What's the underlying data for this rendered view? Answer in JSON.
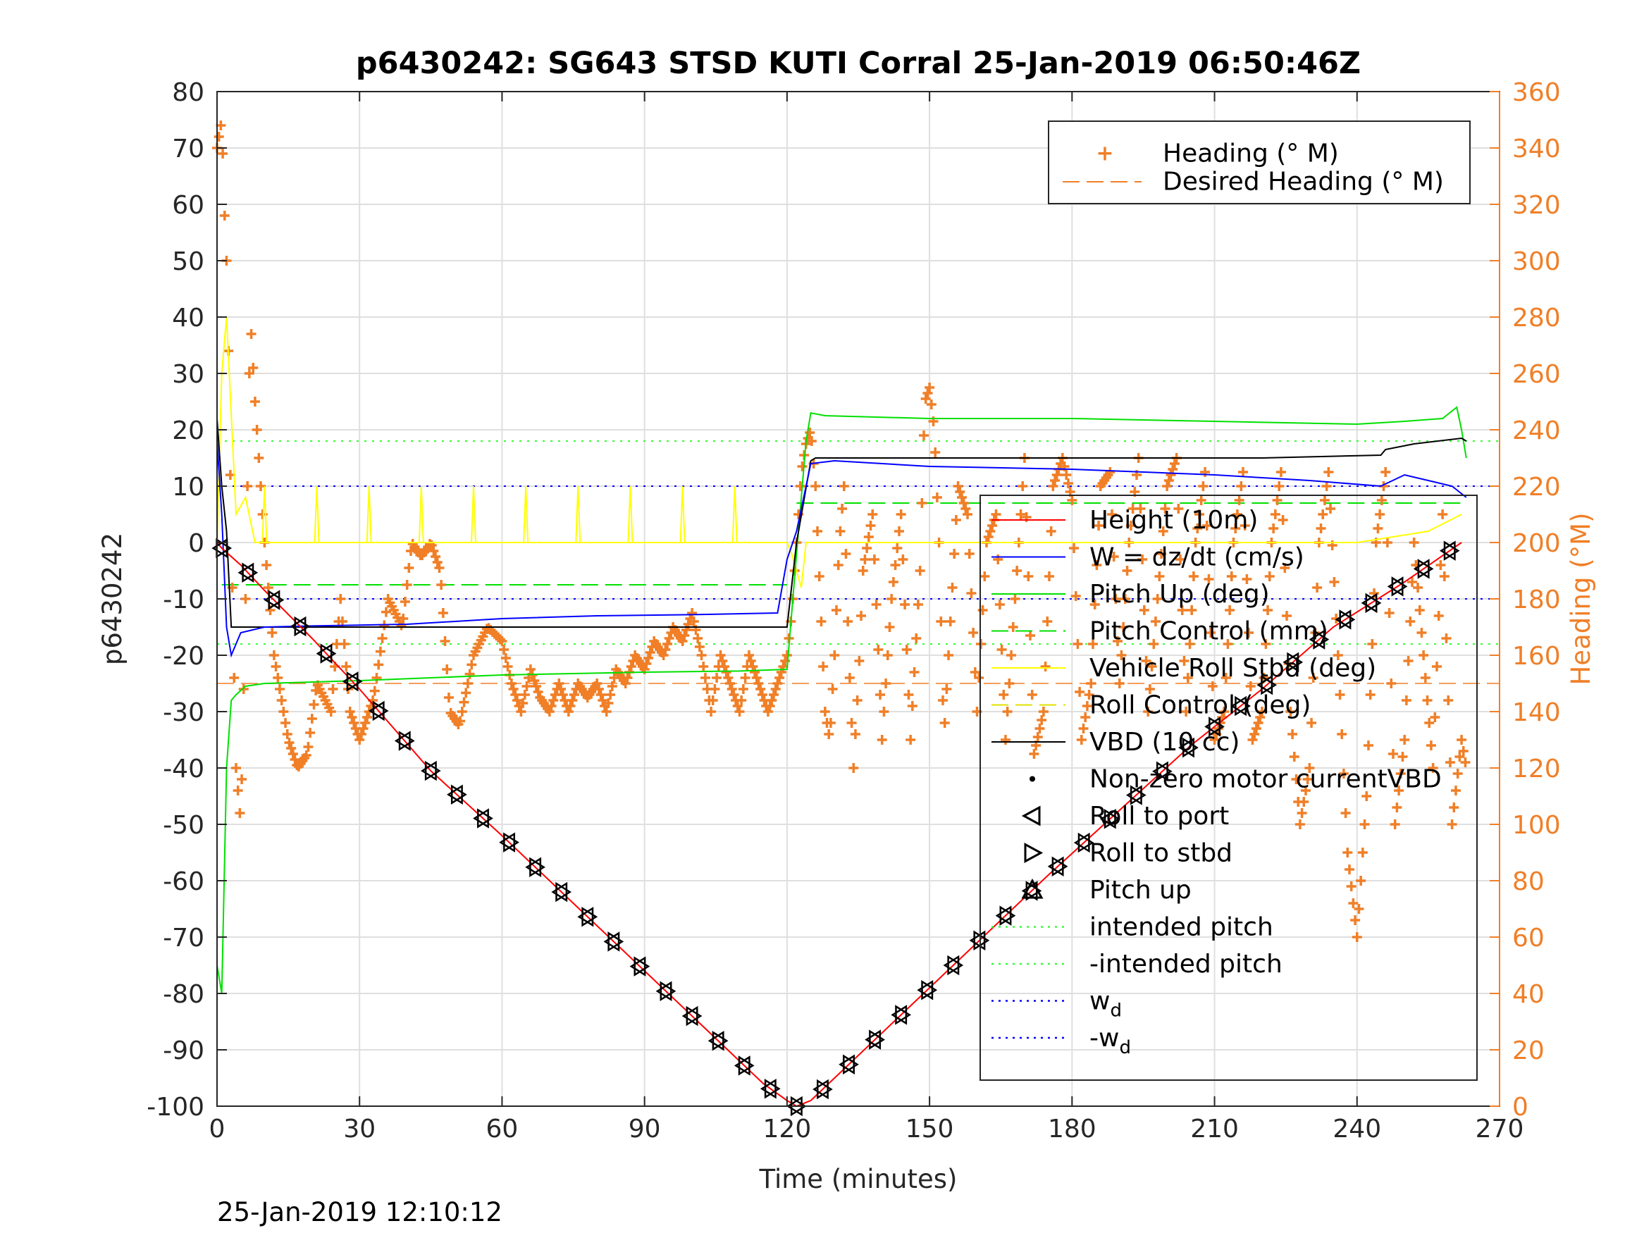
{
  "chart_data": {
    "type": "line",
    "title": "p6430242: SG643 STSD KUTI Corral 25-Jan-2019 06:50:46Z",
    "xlabel": "Time (minutes)",
    "ylabel": "p6430242",
    "ylabel_right": "Heading (°M)",
    "xlim": [
      0,
      270
    ],
    "ylim": [
      -100,
      80
    ],
    "ylim_right": [
      0,
      360
    ],
    "xticks": [
      "0",
      "30",
      "60",
      "90",
      "120",
      "150",
      "180",
      "210",
      "240",
      "270"
    ],
    "yticks": [
      "80",
      "70",
      "60",
      "50",
      "40",
      "30",
      "20",
      "10",
      "0",
      "-10",
      "-20",
      "-30",
      "-40",
      "-50",
      "-60",
      "-70",
      "-80",
      "-90",
      "-100"
    ],
    "yticks_right": [
      "360",
      "340",
      "320",
      "300",
      "280",
      "260",
      "240",
      "220",
      "200",
      "180",
      "160",
      "140",
      "120",
      "100",
      "80",
      "60",
      "40",
      "20",
      "0"
    ],
    "grid": true,
    "footer": "25-Jan-2019 12:10:12",
    "colors": {
      "height": "#ff0000",
      "w": "#0000ff",
      "pitch_up": "#00e000",
      "pitch_control": "#00e000",
      "roll_stbd": "#ffff00",
      "roll_control": "#e0e000",
      "vbd": "#000000",
      "heading": "#f07f27",
      "desired_heading": "#f07f27",
      "intended_pitch": "#33ff33",
      "wd": "#0000ff"
    },
    "legend_top": {
      "placement": "top-right",
      "entries": [
        "Heading (° M)",
        "Desired Heading (° M)"
      ]
    },
    "legend_main": {
      "placement": "right",
      "entries": [
        {
          "label": "Height (10m)",
          "style": "line",
          "color": "#ff0000"
        },
        {
          "label": "W = dz/dt (cm/s)",
          "style": "line",
          "color": "#0000ff"
        },
        {
          "label": "Pitch Up (deg)",
          "style": "line",
          "color": "#00e000"
        },
        {
          "label": "Pitch Control (mm)",
          "style": "dash",
          "color": "#00e000"
        },
        {
          "label": "Vehicle Roll Stbd (deg)",
          "style": "line",
          "color": "#ffff00"
        },
        {
          "label": "Roll Control (deg)",
          "style": "dash",
          "color": "#e0e000"
        },
        {
          "label": "VBD (10 cc)",
          "style": "line",
          "color": "#000000"
        },
        {
          "label": "Non-zero motor currentVBD",
          "style": "dot",
          "color": "#000000"
        },
        {
          "label": "Roll to port",
          "style": "tri-left",
          "color": "#000000"
        },
        {
          "label": "Roll to stbd",
          "style": "tri-right",
          "color": "#000000"
        },
        {
          "label": "Pitch up",
          "style": "tri-up",
          "color": "#000000"
        },
        {
          "label": "intended pitch",
          "style": "dotted",
          "color": "#33ff33"
        },
        {
          "label": "-intended pitch",
          "style": "dotted",
          "color": "#33ff33"
        },
        {
          "label": "w",
          "sub": "d",
          "style": "dotted",
          "color": "#0000ff"
        },
        {
          "label": "-w",
          "sub": "d",
          "style": "dotted",
          "color": "#0000ff"
        }
      ]
    },
    "reference_lines": {
      "intended_pitch": 18,
      "neg_intended_pitch": -18,
      "wd": 10,
      "neg_wd": -10,
      "pitch_control_dive": -7.5,
      "pitch_control_climb": 7,
      "desired_heading": 150
    },
    "series": [
      {
        "name": "Height (10m)",
        "x": [
          0,
          1,
          5,
          10,
          20,
          30,
          45,
          60,
          75,
          90,
          105,
          115,
          120,
          122,
          125,
          130,
          145,
          160,
          175,
          190,
          205,
          220,
          235,
          250,
          262
        ],
        "values": [
          0,
          -1,
          -4,
          -8.5,
          -17,
          -26,
          -40.5,
          -52,
          -64,
          -76,
          -88,
          -96,
          -99,
          -100,
          -99,
          -95,
          -83,
          -71,
          -59,
          -47.5,
          -36,
          -26,
          -15,
          -7,
          0
        ]
      },
      {
        "name": "W = dz/dt (cm/s)",
        "x": [
          0,
          1,
          2,
          3,
          5,
          10,
          20,
          40,
          60,
          80,
          100,
          118,
          120,
          122,
          125,
          130,
          150,
          180,
          210,
          230,
          245,
          250,
          260,
          263
        ],
        "values": [
          18,
          5,
          -15,
          -20,
          -16,
          -15,
          -14.8,
          -14.5,
          -13.5,
          -13,
          -12.8,
          -12.5,
          -3,
          2,
          14,
          14.5,
          13.5,
          13,
          12,
          11,
          10,
          12,
          10,
          8
        ]
      },
      {
        "name": "Pitch Up (deg)",
        "x": [
          0,
          1,
          2,
          3,
          4,
          6,
          10,
          30,
          60,
          90,
          110,
          120,
          122,
          124,
          125,
          128,
          150,
          180,
          210,
          240,
          250,
          258,
          261,
          262,
          263
        ],
        "values": [
          -75,
          -80,
          -40,
          -28,
          -27,
          -25.5,
          -25,
          -24.5,
          -23.5,
          -23,
          -22.8,
          -22.5,
          -2,
          18,
          23,
          22.5,
          22,
          22,
          21.5,
          21,
          21.5,
          22,
          24,
          20,
          15
        ]
      },
      {
        "name": "Vehicle Roll Stbd (deg)",
        "x": [
          0,
          1,
          2,
          4,
          6,
          8,
          10,
          40,
          80,
          120,
          121,
          123,
          124,
          130,
          160,
          200,
          240,
          255,
          262
        ],
        "values": [
          0,
          30,
          40,
          5,
          8,
          0,
          0,
          0,
          0,
          0,
          -2,
          -8,
          0,
          0,
          0,
          0,
          0,
          2,
          5
        ]
      },
      {
        "name": "VBD (10 cc)",
        "x": [
          0,
          1,
          2,
          3,
          5,
          50,
          100,
          120,
          122,
          125,
          126,
          160,
          220,
          245,
          246,
          252,
          262,
          263
        ],
        "values": [
          22,
          10,
          2,
          -15,
          -15,
          -15,
          -15,
          -15,
          0,
          14.5,
          15,
          15,
          15,
          15.5,
          16.5,
          17.5,
          18.5,
          18
        ]
      }
    ],
    "heading_series": {
      "name": "Heading (° M)",
      "x": [
        0,
        1,
        1.5,
        2,
        2.5,
        3,
        4,
        5,
        6,
        7,
        8,
        10,
        12,
        15,
        17,
        19,
        21,
        24,
        26,
        28,
        30,
        33,
        36,
        39,
        41,
        43,
        45,
        47,
        49,
        51,
        54,
        57,
        60,
        62,
        64,
        66,
        68,
        70,
        72,
        74,
        76,
        78,
        80,
        82,
        84,
        86,
        88,
        90,
        92,
        94,
        96,
        98,
        100,
        102,
        104,
        106,
        108,
        110,
        112,
        114,
        116,
        118,
        120,
        121,
        122,
        123,
        124,
        125,
        126,
        127,
        128,
        129,
        130,
        131,
        132,
        133,
        134,
        135,
        136,
        138,
        140,
        142,
        144,
        146,
        148,
        149,
        150,
        151,
        152,
        153,
        154,
        156,
        158,
        160,
        162,
        164,
        166,
        168,
        170,
        172,
        174,
        176,
        178,
        180,
        182,
        184,
        186,
        188,
        190,
        192,
        194,
        196,
        198,
        200,
        202,
        204,
        206,
        208,
        210,
        212,
        214,
        216,
        218,
        220,
        222,
        224,
        226,
        228,
        230,
        232,
        234,
        236,
        238,
        240,
        242,
        244,
        246,
        248,
        250,
        252,
        254,
        256,
        258,
        260,
        262,
        263
      ],
      "values": [
        340,
        350,
        320,
        300,
        260,
        200,
        120,
        100,
        180,
        280,
        250,
        200,
        160,
        130,
        120,
        125,
        150,
        140,
        180,
        140,
        130,
        145,
        180,
        170,
        200,
        195,
        200,
        190,
        140,
        135,
        160,
        170,
        165,
        150,
        140,
        155,
        145,
        140,
        150,
        140,
        150,
        145,
        150,
        140,
        155,
        150,
        160,
        155,
        165,
        160,
        170,
        165,
        175,
        160,
        140,
        160,
        150,
        140,
        160,
        150,
        140,
        150,
        160,
        175,
        200,
        225,
        235,
        240,
        220,
        180,
        140,
        130,
        160,
        200,
        220,
        160,
        120,
        150,
        190,
        210,
        130,
        180,
        210,
        130,
        190,
        250,
        255,
        240,
        200,
        130,
        160,
        220,
        210,
        140,
        200,
        210,
        130,
        180,
        230,
        125,
        140,
        220,
        230,
        215,
        130,
        150,
        220,
        225,
        150,
        200,
        230,
        140,
        180,
        220,
        230,
        140,
        200,
        225,
        130,
        140,
        200,
        225,
        130,
        140,
        200,
        225,
        140,
        100,
        120,
        200,
        225,
        160,
        90,
        60,
        110,
        200,
        225,
        100,
        130,
        200,
        160,
        120,
        210,
        100,
        130,
        120
      ]
    }
  }
}
